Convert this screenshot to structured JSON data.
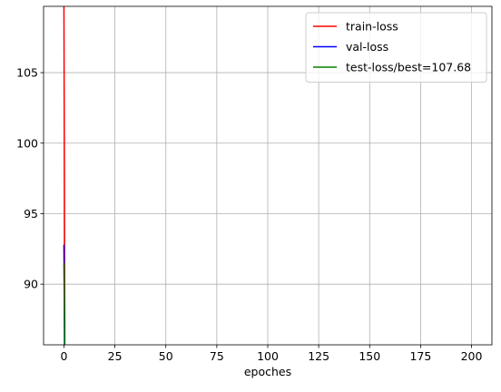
{
  "chart_data": {
    "type": "line",
    "title": "",
    "xlabel": "epoches",
    "ylabel": "",
    "xlim": [
      -10,
      210
    ],
    "ylim": [
      85.7,
      109.7
    ],
    "xticks": [
      0,
      25,
      50,
      75,
      100,
      125,
      150,
      175,
      200
    ],
    "xtick_labels": [
      "0",
      "25",
      "50",
      "75",
      "100",
      "125",
      "150",
      "175",
      "200"
    ],
    "yticks": [
      90,
      95,
      100,
      105
    ],
    "ytick_labels": [
      "90",
      "95",
      "100",
      "105"
    ],
    "grid": true,
    "legend_position": "top-right",
    "series": [
      {
        "name": "train-loss",
        "color": "#ff0000",
        "x": [
          0,
          0.5
        ],
        "y": [
          109.7,
          82.0
        ]
      },
      {
        "name": "val-loss",
        "color": "#0000ff",
        "x": [
          0,
          0.5
        ],
        "y": [
          92.8,
          82.0
        ]
      },
      {
        "name": "test-loss/best=107.68",
        "color": "#008000",
        "x": [
          0,
          0.5
        ],
        "y": [
          91.5,
          82.0
        ]
      }
    ]
  }
}
